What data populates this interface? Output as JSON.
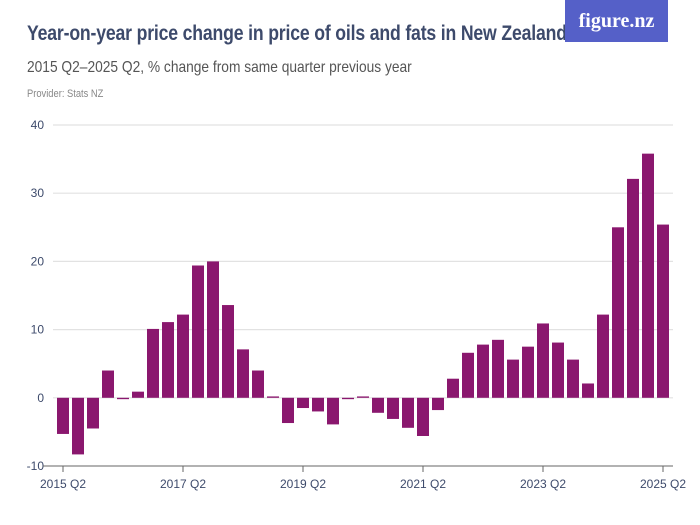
{
  "header": {
    "title": "Year-on-year price change in price of oils and fats in New Zealand",
    "subtitle": "2015 Q2–2025 Q2, % change from same quarter previous year",
    "provider": "Provider: Stats NZ",
    "logo": "figure.nz"
  },
  "colors": {
    "bar": "#8a176e",
    "logo_bg": "#5560c8",
    "text": "#3d4a6b"
  },
  "chart_data": {
    "type": "bar",
    "title": "Year-on-year price change in price of oils and fats in New Zealand",
    "ylim": [
      -10,
      40
    ],
    "yticks": [
      -10,
      0,
      10,
      20,
      30,
      40
    ],
    "grid": true,
    "xtick_labels": [
      "2015 Q2",
      "2017 Q2",
      "2019 Q2",
      "2021 Q2",
      "2023 Q2",
      "2025 Q2"
    ],
    "categories": [
      "2015 Q2",
      "2015 Q3",
      "2015 Q4",
      "2016 Q1",
      "2016 Q2",
      "2016 Q3",
      "2016 Q4",
      "2017 Q1",
      "2017 Q2",
      "2017 Q3",
      "2017 Q4",
      "2018 Q1",
      "2018 Q2",
      "2018 Q3",
      "2018 Q4",
      "2019 Q1",
      "2019 Q2",
      "2019 Q3",
      "2019 Q4",
      "2020 Q1",
      "2020 Q2",
      "2020 Q3",
      "2020 Q4",
      "2021 Q1",
      "2021 Q2",
      "2021 Q3",
      "2021 Q4",
      "2022 Q1",
      "2022 Q2",
      "2022 Q3",
      "2022 Q4",
      "2023 Q1",
      "2023 Q2",
      "2023 Q3",
      "2023 Q4",
      "2024 Q1",
      "2024 Q2",
      "2024 Q3",
      "2024 Q4",
      "2025 Q1",
      "2025 Q2"
    ],
    "values": [
      -5.3,
      -8.3,
      -4.5,
      4.0,
      -0.2,
      0.9,
      10.1,
      11.1,
      12.2,
      19.4,
      20.0,
      13.6,
      7.1,
      4.0,
      0.2,
      -3.7,
      -1.5,
      -2.0,
      -3.9,
      -0.2,
      0.2,
      -2.2,
      -3.1,
      -4.4,
      -5.6,
      -1.8,
      2.8,
      6.6,
      7.8,
      8.5,
      5.6,
      7.5,
      10.9,
      8.1,
      5.6,
      2.1,
      12.2,
      25.0,
      32.1,
      35.8,
      25.4
    ]
  }
}
